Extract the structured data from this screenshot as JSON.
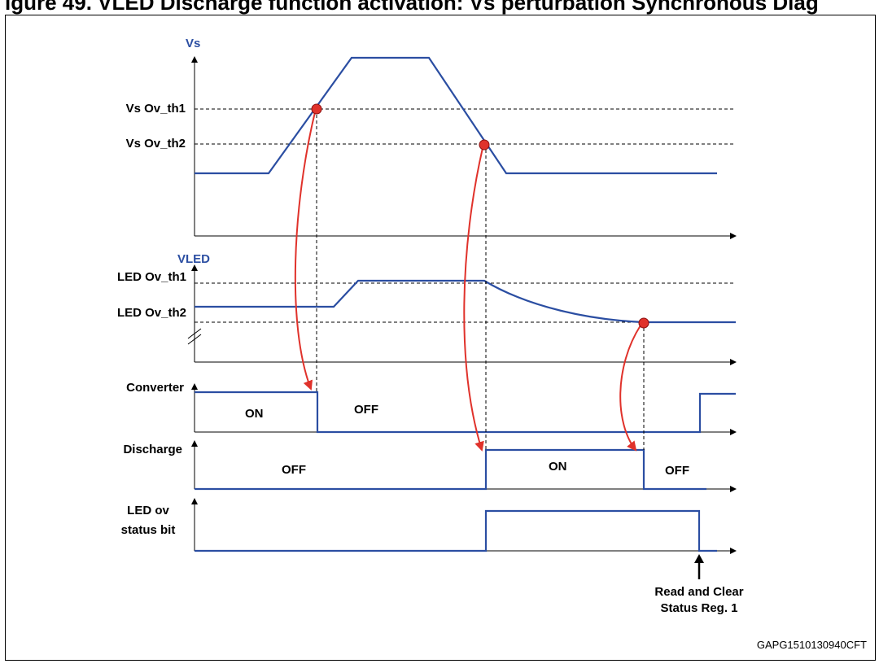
{
  "caption": "igure 49. VLED Discharge function activation: Vs perturbation Synchronous Diag",
  "signals": {
    "vs": {
      "axis_label": "Vs",
      "threshold_1": "Vs Ov_th1",
      "threshold_2": "Vs Ov_th2"
    },
    "vled": {
      "axis_label": "VLED",
      "threshold_1": "LED Ov_th1",
      "threshold_2": "LED Ov_th2"
    },
    "converter": {
      "label": "Converter",
      "state_1": "ON",
      "state_2": "OFF"
    },
    "discharge": {
      "label": "Discharge",
      "state_1": "OFF",
      "state_2": "ON",
      "state_3": "OFF"
    },
    "led_ov": {
      "label_line1": "LED ov",
      "label_line2": "status bit"
    }
  },
  "annotation": {
    "line1": "Read and Clear",
    "line2": "Status Reg. 1"
  },
  "figure_code": "GAPG1510130940CFT",
  "colors": {
    "signal": "#2b4ea2",
    "event_arrow": "#e0322b",
    "event_marker": "#e0322b"
  }
}
